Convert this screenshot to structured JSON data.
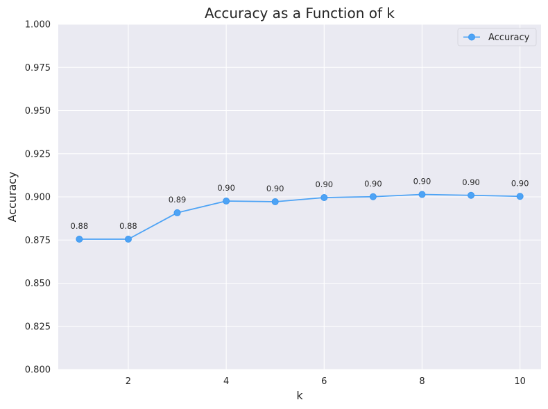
{
  "chart_data": {
    "type": "line",
    "title": "Accuracy as a Function of k",
    "xlabel": "k",
    "ylabel": "Accuracy",
    "x": [
      1,
      2,
      3,
      4,
      5,
      6,
      7,
      8,
      9,
      10
    ],
    "series": [
      {
        "name": "Accuracy",
        "values": [
          0.8755,
          0.8755,
          0.8908,
          0.8976,
          0.8972,
          0.8996,
          0.9001,
          0.9014,
          0.9009,
          0.9003
        ],
        "labels": [
          "0.88",
          "0.88",
          "0.89",
          "0.90",
          "0.90",
          "0.90",
          "0.90",
          "0.90",
          "0.90",
          "0.90"
        ],
        "color": "#4da3f5"
      }
    ],
    "xlim": [
      0.57,
      10.43
    ],
    "ylim": [
      0.8,
      1.0
    ],
    "xticks": [
      2,
      4,
      6,
      8,
      10
    ],
    "xtick_labels": [
      "2",
      "4",
      "6",
      "8",
      "10"
    ],
    "yticks": [
      0.8,
      0.825,
      0.85,
      0.875,
      0.9,
      0.925,
      0.95,
      0.975,
      1.0
    ],
    "ytick_labels": [
      "0.800",
      "0.825",
      "0.850",
      "0.875",
      "0.900",
      "0.925",
      "0.950",
      "0.975",
      "1.000"
    ],
    "grid": true,
    "legend": "top-right",
    "background": "#eaeaf2"
  }
}
